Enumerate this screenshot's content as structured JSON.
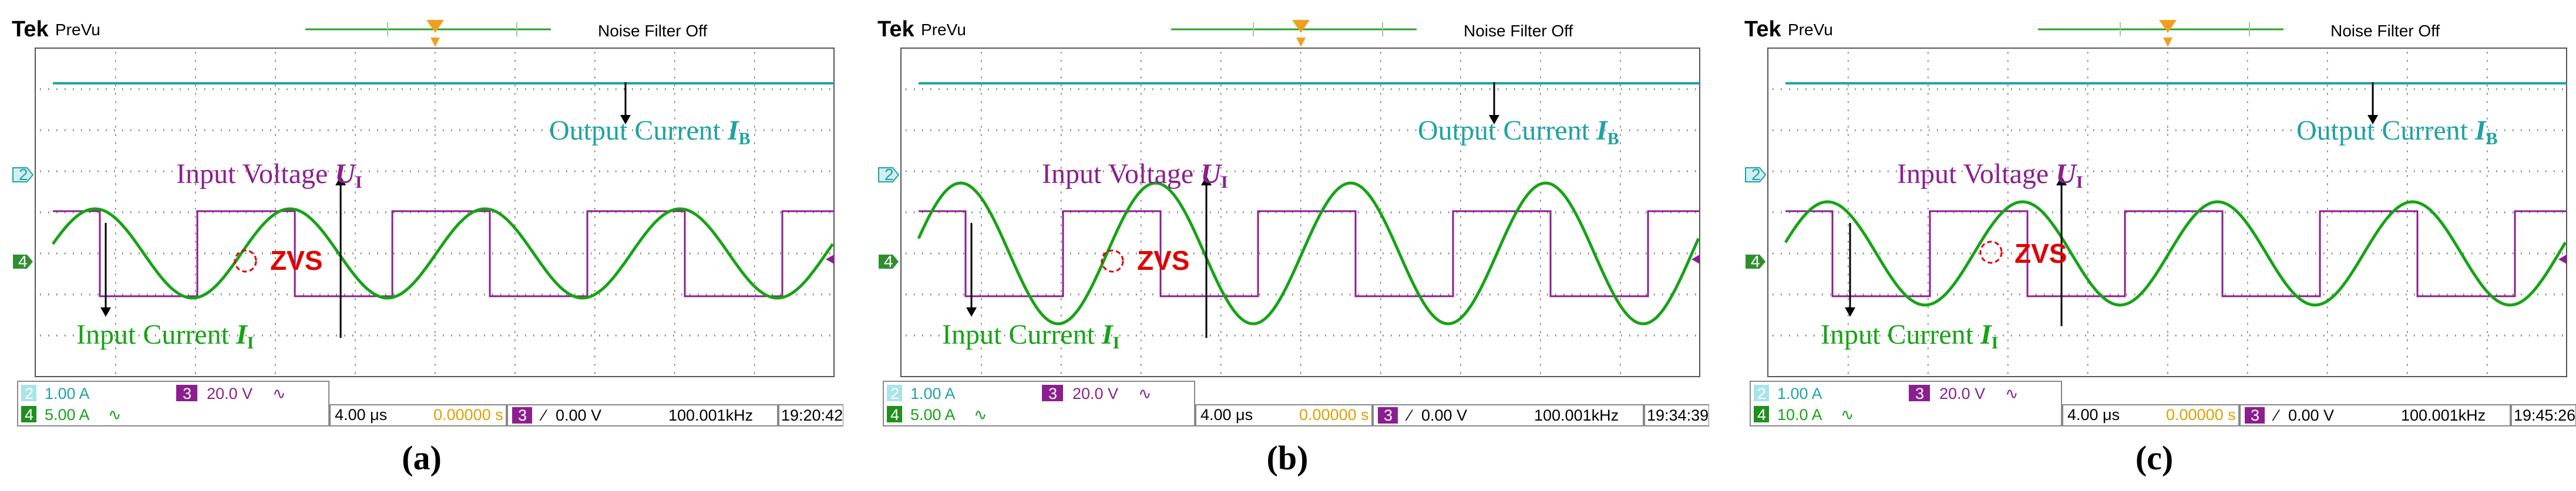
{
  "panels": [
    {
      "id": "a",
      "brand": "Tek",
      "mode": "PreVu",
      "filter_status": "Noise Filter Off",
      "ch2_scale": "1.00 A",
      "ch4_scale": "5.00 A",
      "ch3_scale": "20.0 V",
      "timebase": "4.00 μs",
      "delay": "0.00000 s",
      "trigger_level": "0.00 V",
      "frequency": "100.001kHz",
      "timestamp": "19:20:42",
      "output_label": "Output Current ",
      "output_sym": "I",
      "output_sub": "B",
      "voltage_label": "Input Voltage ",
      "voltage_sym": "U",
      "voltage_sub": "I",
      "current_label": "Input Current ",
      "current_sym": "I",
      "current_sub": "I",
      "zvs": "ZVS",
      "caption": "(a)",
      "ch2_marker": "2",
      "ch3_marker": "3",
      "ch4_marker": "4",
      "coupling_ac": "∿",
      "trigger_slope": "∕"
    },
    {
      "id": "b",
      "brand": "Tek",
      "mode": "PreVu",
      "filter_status": "Noise Filter Off",
      "ch2_scale": "1.00 A",
      "ch4_scale": "5.00 A",
      "ch3_scale": "20.0 V",
      "timebase": "4.00 μs",
      "delay": "0.00000 s",
      "trigger_level": "0.00 V",
      "frequency": "100.001kHz",
      "timestamp": "19:34:39",
      "output_label": "Output Current ",
      "output_sym": "I",
      "output_sub": "B",
      "voltage_label": "Input Voltage ",
      "voltage_sym": "U",
      "voltage_sub": "I",
      "current_label": "Input Current ",
      "current_sym": "I",
      "current_sub": "I",
      "zvs": "ZVS",
      "caption": "(b)",
      "ch2_marker": "2",
      "ch3_marker": "3",
      "ch4_marker": "4",
      "coupling_ac": "∿",
      "trigger_slope": "∕"
    },
    {
      "id": "c",
      "brand": "Tek",
      "mode": "PreVu",
      "filter_status": "Noise Filter Off",
      "ch2_scale": "1.00 A",
      "ch4_scale": "10.0 A",
      "ch3_scale": "20.0 V",
      "timebase": "4.00 μs",
      "delay": "0.00000 s",
      "trigger_level": "0.00 V",
      "frequency": "100.001kHz",
      "timestamp": "19:45:26",
      "output_label": "Output Current ",
      "output_sym": "I",
      "output_sub": "B",
      "voltage_label": "Input Voltage ",
      "voltage_sym": "U",
      "voltage_sub": "I",
      "current_label": "Input Current ",
      "current_sym": "I",
      "current_sub": "I",
      "zvs": "ZVS",
      "caption": "(c)",
      "ch2_marker": "2",
      "ch3_marker": "3",
      "ch4_marker": "4",
      "coupling_ac": "∿",
      "trigger_slope": "∕"
    }
  ],
  "colors": {
    "ch2_cyan": "#1fa3a3",
    "ch2_marker_fill": "#cfeff2",
    "ch3_purple": "#8b1f8f",
    "ch4_green": "#16a316",
    "zvs_red": "#e00000",
    "grid": "#666666"
  }
}
